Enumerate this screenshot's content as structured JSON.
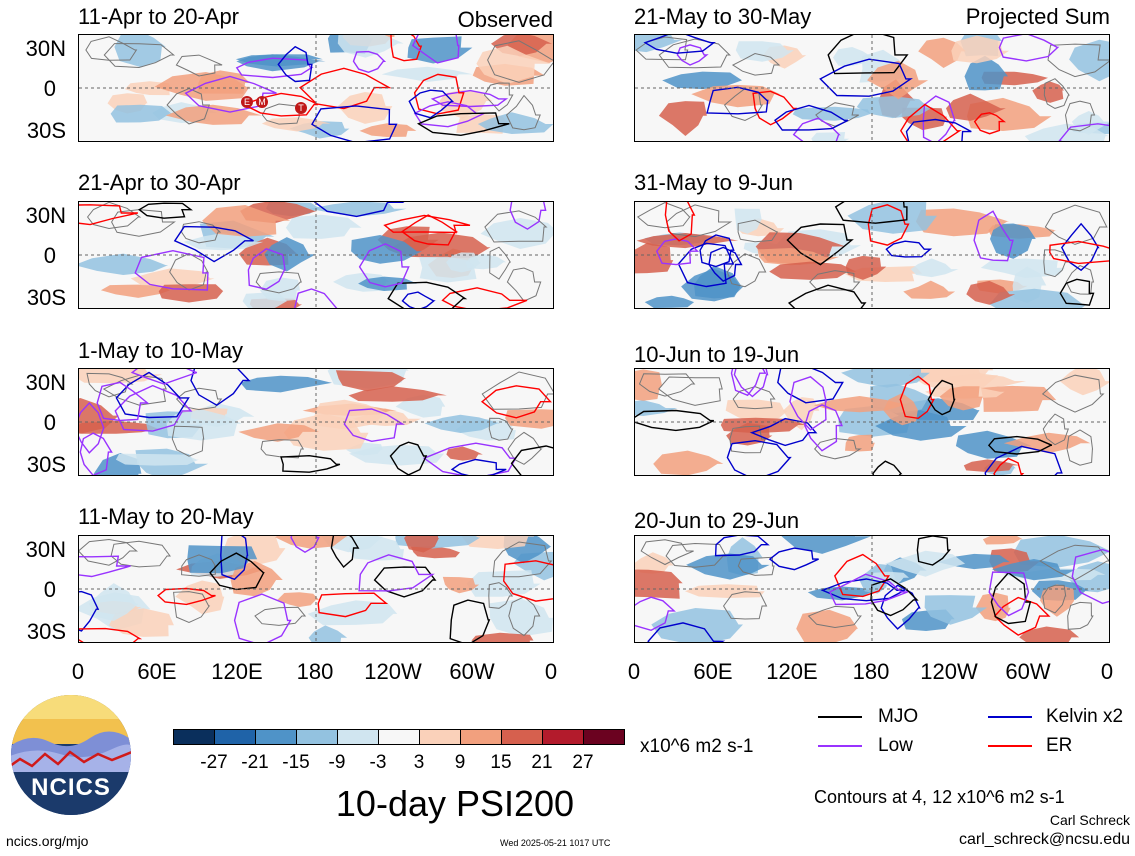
{
  "panels": [
    {
      "title": "11-Apr to 20-Apr",
      "note": "Observed"
    },
    {
      "title": "21-Apr to 30-Apr",
      "note": ""
    },
    {
      "title": "1-May to 10-May",
      "note": ""
    },
    {
      "title": "11-May to 20-May",
      "note": ""
    },
    {
      "title": "21-May to 30-May",
      "note": "Projected Sum"
    },
    {
      "title": "31-May to 9-Jun",
      "note": ""
    },
    {
      "title": "10-Jun to 19-Jun",
      "note": ""
    },
    {
      "title": "20-Jun to 29-Jun",
      "note": ""
    }
  ],
  "lat_labels": [
    "30N",
    "0",
    "30S"
  ],
  "lon_labels": [
    "0",
    "60E",
    "120E",
    "180",
    "120W",
    "60W",
    "0"
  ],
  "storm_markers": [
    "E",
    "M",
    "T"
  ],
  "colorbar": {
    "labels": [
      "-27",
      "-21",
      "-15",
      "-9",
      "-3",
      "3",
      "9",
      "15",
      "21",
      "27"
    ],
    "colors": [
      "#0a2f5c",
      "#1f63a8",
      "#4f93c8",
      "#93c2e0",
      "#d0e5f0",
      "#f7f7f7",
      "#fad1ba",
      "#f2a07e",
      "#d6604e",
      "#b31b2c",
      "#6b0220"
    ],
    "units": "x10^6 m2 s-1"
  },
  "main_title": "10-day PSI200",
  "legend": [
    {
      "label": "MJO",
      "color": "#000000"
    },
    {
      "label": "Kelvin x2",
      "color": "#0000cc"
    },
    {
      "label": "Low",
      "color": "#9933ff"
    },
    {
      "label": "ER",
      "color": "#ff0000"
    }
  ],
  "contour_note": "Contours at 4, 12 x10^6 m2 s-1",
  "author": "Carl Schreck",
  "email": "carl_schreck@ncsu.edu",
  "site": "ncics.org/mjo",
  "timestamp": "Wed 2025-05-21 1017 UTC",
  "logo_text": "NCICS"
}
